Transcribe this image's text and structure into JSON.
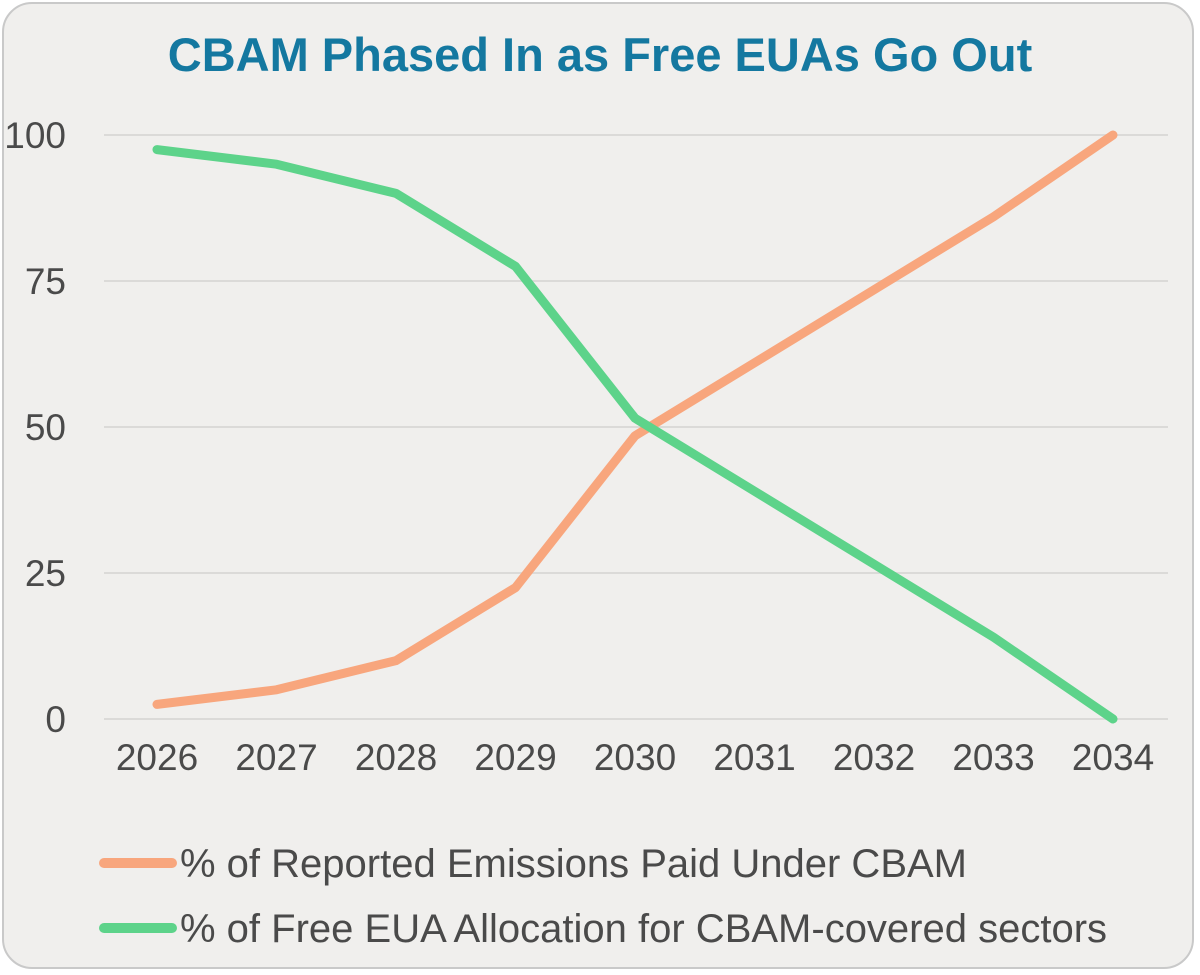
{
  "title": "CBAM Phased In as Free EUAs Go Out",
  "colors": {
    "title": "#1478A0",
    "card_background": "#F0EFED",
    "card_border": "#C9C9C9",
    "gridline": "#DBDAD8",
    "axis_text": "#4A4A4A",
    "cbam_line": "#F8A67D",
    "free_eua_line": "#5DD38A"
  },
  "chart_data": {
    "type": "line",
    "title": "CBAM Phased In as Free EUAs Go Out",
    "categories": [
      "2026",
      "2027",
      "2028",
      "2029",
      "2030",
      "2031",
      "2032",
      "2033",
      "2034"
    ],
    "series": [
      {
        "name": "% of Reported Emissions Paid Under CBAM",
        "color": "#F8A67D",
        "values": [
          2.5,
          5,
          10,
          22.5,
          48.5,
          61,
          73.5,
          86,
          100
        ]
      },
      {
        "name": "% of Free EUA Allocation for CBAM-covered sectors",
        "color": "#5DD38A",
        "values": [
          97.5,
          95,
          90,
          77.5,
          51.5,
          39,
          26.5,
          14,
          0
        ]
      }
    ],
    "yticks": [
      0,
      25,
      50,
      75,
      100
    ],
    "ylim": [
      0,
      100
    ],
    "grid": "horizontal-only",
    "legend_position": "bottom-left"
  }
}
